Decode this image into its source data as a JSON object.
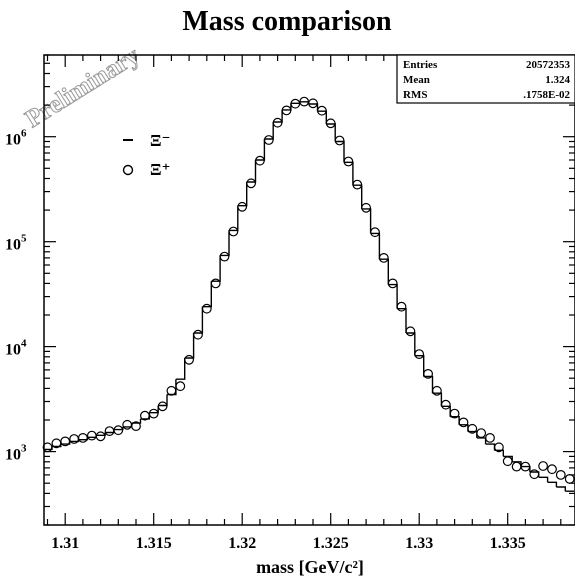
{
  "chart_data": {
    "type": "line",
    "title": "Mass comparison",
    "xlabel": "mass [GeV/c²]",
    "ylabel": "",
    "yscale": "log",
    "xlim": [
      1.3088,
      1.3388
    ],
    "ylim": [
      200,
      6000000
    ],
    "xticks": [
      1.31,
      1.315,
      1.32,
      1.325,
      1.33,
      1.335
    ],
    "xtick_labels": [
      "1.31",
      "1.315",
      "1.32",
      "1.325",
      "1.33",
      "1.335"
    ],
    "yticks": [
      1000,
      10000,
      100000,
      1000000
    ],
    "ytick_bases": [
      "10",
      "10",
      "10",
      "10"
    ],
    "ytick_exponents": [
      "3",
      "4",
      "5",
      "6"
    ],
    "grid": false,
    "legend_position": "top-left",
    "watermark": "Preliminary",
    "stats_box": {
      "position": "top-right",
      "rows": [
        {
          "label": "Entries",
          "value": "20572353"
        },
        {
          "label": "Mean",
          "value": "1.324"
        },
        {
          "label": "RMS",
          "value": ".1758E-02"
        }
      ]
    },
    "x": [
      1.309,
      1.3095,
      1.31,
      1.3105,
      1.311,
      1.3115,
      1.312,
      1.3125,
      1.313,
      1.3135,
      1.314,
      1.3145,
      1.315,
      1.3155,
      1.316,
      1.3165,
      1.317,
      1.3175,
      1.318,
      1.3185,
      1.319,
      1.3195,
      1.32,
      1.3205,
      1.321,
      1.3215,
      1.322,
      1.3225,
      1.323,
      1.3235,
      1.324,
      1.3245,
      1.325,
      1.3255,
      1.326,
      1.3265,
      1.327,
      1.3275,
      1.328,
      1.3285,
      1.329,
      1.3295,
      1.33,
      1.3305,
      1.331,
      1.3315,
      1.332,
      1.3325,
      1.333,
      1.3335,
      1.334,
      1.3345,
      1.335,
      1.3355,
      1.336,
      1.3365,
      1.337,
      1.3375,
      1.338,
      1.3385
    ],
    "series": [
      {
        "name": "Ξ⁻",
        "style": "histogram",
        "values": [
          1050,
          1120,
          1180,
          1250,
          1300,
          1370,
          1430,
          1520,
          1620,
          1720,
          1870,
          2050,
          2350,
          2750,
          3500,
          4900,
          7800,
          13500,
          24000,
          42000,
          74000,
          128000,
          220000,
          370000,
          600000,
          950000,
          1380000,
          1800000,
          2080000,
          2150000,
          2050000,
          1750000,
          1320000,
          900000,
          570000,
          345000,
          205000,
          120000,
          68000,
          39000,
          23000,
          13500,
          8200,
          5200,
          3600,
          2700,
          2150,
          1800,
          1550,
          1350,
          1180,
          1030,
          900,
          800,
          720,
          640,
          570,
          510,
          460,
          420
        ]
      },
      {
        "name": "Ξ⁺",
        "style": "markers",
        "values": [
          1100,
          1200,
          1250,
          1320,
          1350,
          1420,
          1400,
          1570,
          1600,
          1800,
          1750,
          2200,
          2300,
          2700,
          3800,
          4200,
          7500,
          13000,
          23000,
          40000,
          72000,
          125000,
          215000,
          360000,
          590000,
          930000,
          1360000,
          1780000,
          2060000,
          2160000,
          2080000,
          1770000,
          1340000,
          920000,
          580000,
          350000,
          210000,
          123000,
          70000,
          40000,
          24000,
          14000,
          8500,
          5500,
          3800,
          2800,
          2300,
          1900,
          1650,
          1500,
          1350,
          1100,
          810,
          720,
          720,
          610,
          730,
          680,
          600,
          550
        ]
      }
    ]
  }
}
